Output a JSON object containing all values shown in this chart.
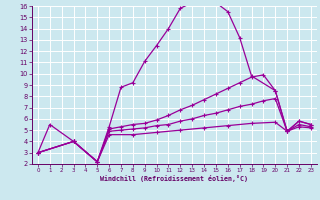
{
  "xlabel": "Windchill (Refroidissement éolien,°C)",
  "bg_color": "#cce8ef",
  "grid_color": "#ffffff",
  "line_color": "#990099",
  "xlim": [
    -0.5,
    23.5
  ],
  "ylim": [
    2,
    16
  ],
  "xticks": [
    0,
    1,
    2,
    3,
    4,
    5,
    6,
    7,
    8,
    9,
    10,
    11,
    12,
    13,
    14,
    15,
    16,
    17,
    18,
    19,
    20,
    21,
    22,
    23
  ],
  "yticks": [
    2,
    3,
    4,
    5,
    6,
    7,
    8,
    9,
    10,
    11,
    12,
    13,
    14,
    15,
    16
  ],
  "curve1_x": [
    0,
    1,
    3,
    5,
    6,
    7,
    8,
    9,
    10,
    11,
    12,
    13,
    14,
    15,
    16,
    17,
    18,
    20,
    21,
    22,
    23
  ],
  "curve1_y": [
    3,
    5.5,
    4.0,
    2.2,
    5.3,
    8.8,
    9.2,
    11.1,
    12.5,
    14.0,
    15.8,
    16.3,
    16.3,
    16.3,
    15.5,
    13.2,
    9.8,
    8.5,
    4.9,
    5.8,
    5.5
  ],
  "curve2_x": [
    0,
    3,
    5,
    6,
    7,
    8,
    9,
    10,
    11,
    12,
    13,
    14,
    15,
    16,
    17,
    18,
    19,
    20,
    21,
    22,
    23
  ],
  "curve2_y": [
    3,
    4.0,
    2.2,
    5.1,
    5.3,
    5.5,
    5.6,
    5.9,
    6.3,
    6.8,
    7.2,
    7.7,
    8.2,
    8.7,
    9.2,
    9.7,
    9.9,
    8.5,
    4.9,
    5.8,
    5.5
  ],
  "curve3_x": [
    0,
    3,
    5,
    6,
    7,
    8,
    9,
    10,
    11,
    12,
    13,
    14,
    15,
    16,
    17,
    18,
    19,
    20,
    21,
    22,
    23
  ],
  "curve3_y": [
    3,
    4.0,
    2.2,
    4.9,
    5.0,
    5.1,
    5.2,
    5.4,
    5.5,
    5.8,
    6.0,
    6.3,
    6.5,
    6.8,
    7.1,
    7.3,
    7.6,
    7.8,
    4.9,
    5.5,
    5.3
  ],
  "curve4_x": [
    0,
    3,
    5,
    6,
    8,
    10,
    12,
    14,
    16,
    18,
    20,
    21,
    22,
    23
  ],
  "curve4_y": [
    3,
    4.0,
    2.2,
    4.6,
    4.6,
    4.8,
    5.0,
    5.2,
    5.4,
    5.6,
    5.7,
    4.9,
    5.3,
    5.2
  ]
}
